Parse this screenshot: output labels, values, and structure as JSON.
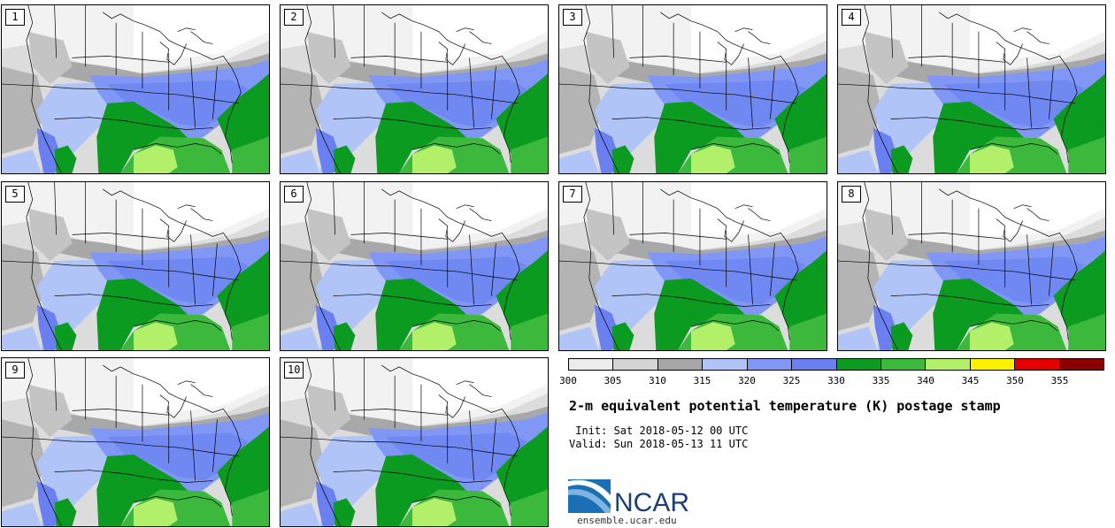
{
  "panels": [
    {
      "label": "1"
    },
    {
      "label": "2"
    },
    {
      "label": "3"
    },
    {
      "label": "4"
    },
    {
      "label": "5"
    },
    {
      "label": "6"
    },
    {
      "label": "7"
    },
    {
      "label": "8"
    },
    {
      "label": "9"
    },
    {
      "label": "10"
    }
  ],
  "colorbar": {
    "colors": [
      "#ececec",
      "#d4d4d4",
      "#a6a6a6",
      "#b0c4f7",
      "#8197f5",
      "#6a7ff0",
      "#0c9b21",
      "#3cb83d",
      "#b2f06a",
      "#fff200",
      "#e40000",
      "#8b0000"
    ],
    "ticks": [
      "300",
      "305",
      "310",
      "315",
      "320",
      "325",
      "330",
      "335",
      "340",
      "345",
      "350",
      "355"
    ]
  },
  "title": "2-m equivalent potential temperature (K) postage stamp",
  "init": " Init: Sat 2018-05-12 00 UTC",
  "valid": "Valid: Sun 2018-05-13 11 UTC",
  "logo_text": "NCAR",
  "url": "ensemble.ucar.edu"
}
